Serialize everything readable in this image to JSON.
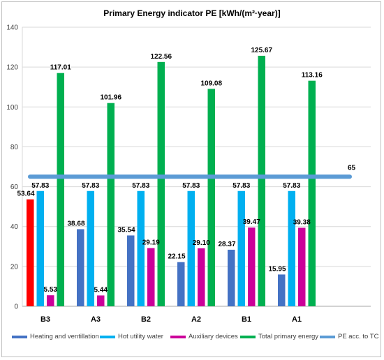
{
  "chart_data": {
    "type": "bar",
    "title": "Primary Energy indicator PE [kWh/(m²·year)]",
    "xlabel": "",
    "ylabel": "",
    "ylim": [
      0,
      140
    ],
    "yticks": [
      0,
      20,
      40,
      60,
      80,
      100,
      120,
      140
    ],
    "grid": "horizontal",
    "legend_position": "bottom",
    "categories": [
      "B3",
      "A3",
      "B2",
      "A2",
      "B1",
      "A1"
    ],
    "series": [
      {
        "name": "Heating and ventillation",
        "color": "#4472C4",
        "values": [
          53.64,
          38.68,
          35.54,
          22.15,
          28.37,
          15.95
        ],
        "value_labels": [
          "53.64",
          "38.68",
          "35.54",
          "22.15",
          "28.37",
          "15.95"
        ],
        "highlight": {
          "index": 0,
          "color": "#FF0000"
        }
      },
      {
        "name": "Hot utility water",
        "color": "#00B0F0",
        "values": [
          57.83,
          57.83,
          57.83,
          57.83,
          57.83,
          57.83
        ],
        "value_labels": [
          "57.83",
          "57.83",
          "57.83",
          "57.83",
          "57.83",
          "57.83"
        ]
      },
      {
        "name": "Auxiliary devices",
        "color": "#CC0099",
        "values": [
          5.53,
          5.44,
          29.19,
          29.1,
          39.47,
          39.38
        ],
        "value_labels": [
          "5.53",
          "5.44",
          "29.19",
          "29.10",
          "39.47",
          "39.38"
        ]
      },
      {
        "name": "Total primary energy",
        "color": "#00B050",
        "values": [
          117.01,
          101.96,
          122.56,
          109.08,
          125.67,
          113.16
        ],
        "value_labels": [
          "117.01",
          "101.96",
          "122.56",
          "109.08",
          "125.67",
          "113.16"
        ]
      }
    ],
    "reference_line": {
      "name": "PE acc. to TC",
      "value": 65,
      "label": "65",
      "color": "#5B9BD5"
    }
  }
}
